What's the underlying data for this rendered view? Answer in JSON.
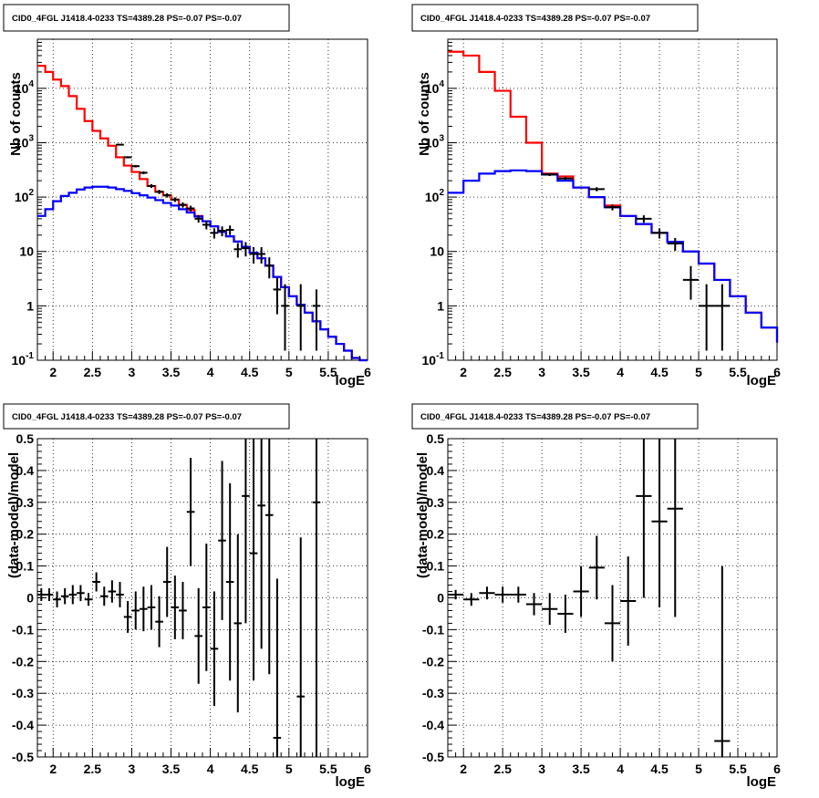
{
  "chart_data": [
    {
      "type": "line",
      "title": "CID0_4FGL J1418.4-0233 TS=4389.28 PS=-0.07 PS=-0.07",
      "xlabel": "logE",
      "ylabel": "Nb of counts",
      "log_y": true,
      "xlim": [
        1.8,
        6.0
      ],
      "ylim": [
        0.1,
        80000
      ],
      "grid": true,
      "x_ticks": [
        2,
        2.5,
        3,
        3.5,
        4,
        4.5,
        5,
        5.5,
        6
      ],
      "x_tick_labels": [
        "2",
        "2.5",
        "3",
        "3.5",
        "4",
        "4.5",
        "5",
        "5.5",
        "6"
      ],
      "y_ticks": [
        0.1,
        1,
        10,
        100,
        1000,
        10000
      ],
      "y_tick_labels": [
        "10^-1",
        "1",
        "10",
        "10^2",
        "10^3",
        "10^4"
      ],
      "series": [
        {
          "kind": "step",
          "color": "#ff0000",
          "x_edges": [
            1.8,
            1.9,
            2.0,
            2.1,
            2.2,
            2.3,
            2.4,
            2.5,
            2.6,
            2.7,
            2.8,
            2.9,
            3.0,
            3.1,
            3.2,
            3.3,
            3.4,
            3.5,
            3.6,
            3.7,
            3.8,
            3.9,
            4.0,
            4.1,
            4.2,
            4.3,
            4.4,
            4.5,
            4.6,
            4.7,
            4.8,
            4.9,
            5.0,
            5.1,
            5.2,
            5.3,
            5.4,
            5.5,
            5.6,
            5.7,
            5.8,
            5.9,
            6.0
          ],
          "values": [
            26000,
            20000,
            14500,
            11000,
            7200,
            4200,
            2500,
            1650,
            1200,
            880,
            540,
            380,
            290,
            215,
            160,
            125,
            108,
            90,
            72,
            58,
            45,
            36,
            29,
            23,
            19,
            15.2,
            12.2,
            9.5,
            7.5,
            5.5,
            3.4,
            2.2,
            1.5,
            1.05,
            0.75,
            0.52,
            0.37,
            0.27,
            0.2,
            0.15,
            0.11,
            0.085
          ]
        },
        {
          "kind": "step",
          "color": "#0000ff",
          "x_edges": [
            1.8,
            1.9,
            2.0,
            2.1,
            2.2,
            2.3,
            2.4,
            2.5,
            2.6,
            2.7,
            2.8,
            2.9,
            3.0,
            3.1,
            3.2,
            3.3,
            3.4,
            3.5,
            3.6,
            3.7,
            3.8,
            3.9,
            4.0,
            4.1,
            4.2,
            4.3,
            4.4,
            4.5,
            4.6,
            4.7,
            4.8,
            4.9,
            5.0,
            5.1,
            5.2,
            5.3,
            5.4,
            5.5,
            5.6,
            5.7,
            5.8,
            5.9,
            6.0
          ],
          "values": [
            45,
            60,
            84,
            105,
            120,
            138,
            150,
            155,
            155,
            150,
            140,
            130,
            118,
            108,
            98,
            88,
            78,
            70,
            60,
            52,
            44,
            36,
            29,
            23,
            19,
            15.2,
            12.2,
            9.5,
            7.5,
            5.5,
            3.4,
            2.2,
            1.5,
            1.05,
            0.75,
            0.52,
            0.37,
            0.27,
            0.2,
            0.15,
            0.11,
            0.085
          ]
        },
        {
          "kind": "errorbar",
          "color": "#000000",
          "x": [
            2.85,
            2.95,
            3.05,
            3.15,
            3.25,
            3.35,
            3.45,
            3.55,
            3.65,
            3.75,
            3.85,
            3.95,
            4.05,
            4.15,
            4.25,
            4.35,
            4.45,
            4.55,
            4.65,
            4.75,
            4.85,
            4.95,
            5.15,
            5.35
          ],
          "xerr": 0.05,
          "y": [
            920,
            540,
            370,
            280,
            160,
            125,
            108,
            90,
            72,
            62,
            40,
            31,
            22,
            24,
            25,
            11,
            11.5,
            9,
            9,
            5.5,
            2,
            1,
            1,
            1
          ],
          "yerr_lo": [
            30,
            23,
            19,
            17,
            13,
            11,
            10,
            9,
            8,
            7.5,
            6,
            5.5,
            4.7,
            4.9,
            5,
            3.3,
            3.4,
            3,
            3,
            2.3,
            1.3,
            0.85,
            0.85,
            0.85
          ],
          "yerr_hi": [
            30,
            23,
            19,
            17,
            13,
            11,
            10,
            9,
            8,
            7.5,
            6,
            5.5,
            4.7,
            4.9,
            5,
            3.3,
            3.4,
            3,
            3,
            2.3,
            1.3,
            1.5,
            1.5,
            1.0
          ]
        }
      ]
    },
    {
      "type": "line",
      "title": "CID0_4FGL J1418.4-0233 TS=4389.28 PS=-0.07 PS=-0.07",
      "xlabel": "logE",
      "ylabel": "Nb of counts",
      "log_y": true,
      "xlim": [
        1.8,
        6.0
      ],
      "ylim": [
        0.1,
        80000
      ],
      "grid": true,
      "x_ticks": [
        2,
        2.5,
        3,
        3.5,
        4,
        4.5,
        5,
        5.5,
        6
      ],
      "x_tick_labels": [
        "2",
        "2.5",
        "3",
        "3.5",
        "4",
        "4.5",
        "5",
        "5.5",
        "6"
      ],
      "y_ticks": [
        0.1,
        1,
        10,
        100,
        1000,
        10000
      ],
      "y_tick_labels": [
        "10^-1",
        "1",
        "10",
        "10^2",
        "10^3",
        "10^4"
      ],
      "series": [
        {
          "kind": "step",
          "color": "#ff0000",
          "x_edges": [
            1.8,
            2.0,
            2.2,
            2.4,
            2.6,
            2.8,
            3.0,
            3.2,
            3.4,
            3.6,
            3.8,
            4.0,
            4.2,
            4.4,
            4.6,
            4.8,
            5.0,
            5.2,
            5.4,
            5.6,
            5.8,
            6.0
          ],
          "values": [
            47000,
            40000,
            20000,
            9000,
            3000,
            1000,
            270,
            240,
            150,
            100,
            70,
            45,
            32,
            22,
            15,
            10,
            6,
            3,
            1.5,
            0.75,
            0.4,
            0.21
          ]
        },
        {
          "kind": "step",
          "color": "#0000ff",
          "x_edges": [
            1.8,
            2.0,
            2.2,
            2.4,
            2.6,
            2.8,
            3.0,
            3.2,
            3.4,
            3.6,
            3.8,
            4.0,
            4.2,
            4.4,
            4.6,
            4.8,
            5.0,
            5.2,
            5.4,
            5.6,
            5.8,
            6.0
          ],
          "values": [
            120,
            200,
            270,
            300,
            310,
            300,
            260,
            200,
            150,
            100,
            65,
            45,
            32,
            22,
            15,
            10,
            6,
            3,
            1.5,
            0.75,
            0.4,
            0.21
          ]
        },
        {
          "kind": "errorbar",
          "color": "#000000",
          "x": [
            3.1,
            3.3,
            3.7,
            3.9,
            4.3,
            4.5,
            4.7,
            4.9,
            5.1,
            5.3
          ],
          "xerr": 0.1,
          "y": [
            260,
            220,
            140,
            65,
            40,
            22,
            14,
            3,
            1,
            1
          ],
          "yerr_lo": [
            16,
            15,
            12,
            8,
            6.3,
            4.7,
            3.7,
            1.7,
            0.85,
            0.85
          ],
          "yerr_hi": [
            16,
            15,
            12,
            8,
            6.3,
            4.7,
            3.7,
            2.4,
            1.5,
            1.5
          ]
        }
      ]
    },
    {
      "type": "scatter",
      "title": "CID0_4FGL J1418.4-0233 TS=4389.28 PS=-0.07 PS=-0.07",
      "xlabel": "logE",
      "ylabel": "(data-model)/model",
      "log_y": false,
      "xlim": [
        1.8,
        6.0
      ],
      "ylim": [
        -0.5,
        0.5
      ],
      "grid": true,
      "x_ticks": [
        2,
        2.5,
        3,
        3.5,
        4,
        4.5,
        5,
        5.5,
        6
      ],
      "x_tick_labels": [
        "2",
        "2.5",
        "3",
        "3.5",
        "4",
        "4.5",
        "5",
        "5.5",
        "6"
      ],
      "y_ticks": [
        -0.5,
        -0.4,
        -0.3,
        -0.2,
        -0.1,
        0,
        0.1,
        0.2,
        0.3,
        0.4,
        0.5
      ],
      "y_tick_labels": [
        "-0.5",
        "-0.4",
        "-0.3",
        "-0.2",
        "-0.1",
        "0",
        "0.1",
        "0.2",
        "0.3",
        "0.4",
        "0.5"
      ],
      "series": [
        {
          "kind": "errorbar",
          "color": "#000000",
          "x": [
            1.85,
            1.95,
            2.05,
            2.15,
            2.25,
            2.35,
            2.45,
            2.55,
            2.65,
            2.75,
            2.85,
            2.95,
            3.05,
            3.15,
            3.25,
            3.35,
            3.45,
            3.55,
            3.65,
            3.75,
            3.85,
            3.95,
            4.05,
            4.15,
            4.25,
            4.35,
            4.45,
            4.55,
            4.65,
            4.75,
            4.85,
            4.95,
            5.05,
            5.15,
            5.25,
            5.35,
            5.45,
            5.55,
            5.65,
            5.75,
            5.85,
            5.95
          ],
          "xerr": 0.05,
          "y": [
            0.01,
            0.01,
            -0.005,
            0.005,
            0.01,
            0.015,
            -0.005,
            0.05,
            0.005,
            0.02,
            0.01,
            -0.06,
            -0.04,
            -0.035,
            -0.03,
            -0.075,
            0.05,
            -0.03,
            -0.04,
            0.27,
            -0.12,
            -0.03,
            -0.16,
            0.18,
            0.05,
            -0.08,
            0.32,
            0.14,
            0.29,
            0.26,
            -0.44,
            0,
            0,
            -0.31,
            0,
            0.3,
            0,
            0,
            0,
            0,
            0,
            0
          ],
          "yerr": [
            0.02,
            0.02,
            0.025,
            0.025,
            0.03,
            0.025,
            0.02,
            0.03,
            0.03,
            0.035,
            0.04,
            0.05,
            0.06,
            0.07,
            0.07,
            0.08,
            0.11,
            0.1,
            0.09,
            0.17,
            0.15,
            0.2,
            0.18,
            0.25,
            0.31,
            0.28,
            0.4,
            0.4,
            0.45,
            0.5,
            0.5,
            0,
            0,
            0.5,
            0,
            0.9,
            0,
            0,
            0,
            0,
            0,
            0
          ],
          "mask": [
            1,
            1,
            1,
            1,
            1,
            1,
            1,
            1,
            1,
            1,
            1,
            1,
            1,
            1,
            1,
            1,
            1,
            1,
            1,
            1,
            1,
            1,
            1,
            1,
            1,
            1,
            1,
            1,
            1,
            1,
            1,
            0,
            0,
            1,
            0,
            1,
            0,
            0,
            0,
            0,
            0,
            0
          ]
        }
      ]
    },
    {
      "type": "scatter",
      "title": "CID0_4FGL J1418.4-0233 TS=4389.28 PS=-0.07 PS=-0.07",
      "xlabel": "logE",
      "ylabel": "(data-model)/model",
      "log_y": false,
      "xlim": [
        1.8,
        6.0
      ],
      "ylim": [
        -0.5,
        0.5
      ],
      "grid": true,
      "x_ticks": [
        2,
        2.5,
        3,
        3.5,
        4,
        4.5,
        5,
        5.5,
        6
      ],
      "x_tick_labels": [
        "2",
        "2.5",
        "3",
        "3.5",
        "4",
        "4.5",
        "5",
        "5.5",
        "6"
      ],
      "y_ticks": [
        -0.5,
        -0.4,
        -0.3,
        -0.2,
        -0.1,
        0,
        0.1,
        0.2,
        0.3,
        0.4,
        0.5
      ],
      "y_tick_labels": [
        "-0.5",
        "-0.4",
        "-0.3",
        "-0.2",
        "-0.1",
        "0",
        "0.1",
        "0.2",
        "0.3",
        "0.4",
        "0.5"
      ],
      "series": [
        {
          "kind": "errorbar",
          "color": "#000000",
          "x": [
            1.9,
            2.1,
            2.3,
            2.5,
            2.7,
            2.9,
            3.1,
            3.3,
            3.5,
            3.7,
            3.9,
            4.1,
            4.3,
            4.5,
            4.7,
            5.3
          ],
          "xerr": 0.1,
          "y": [
            0.01,
            -0.005,
            0.015,
            0.01,
            0.01,
            -0.02,
            -0.035,
            -0.05,
            0.02,
            0.095,
            -0.08,
            -0.01,
            0.32,
            0.24,
            0.28,
            -0.45
          ],
          "yerr": [
            0.015,
            0.02,
            0.02,
            0.025,
            0.025,
            0.035,
            0.05,
            0.06,
            0.08,
            0.1,
            0.12,
            0.14,
            0.32,
            0.27,
            0.34,
            0.55
          ]
        }
      ]
    }
  ]
}
